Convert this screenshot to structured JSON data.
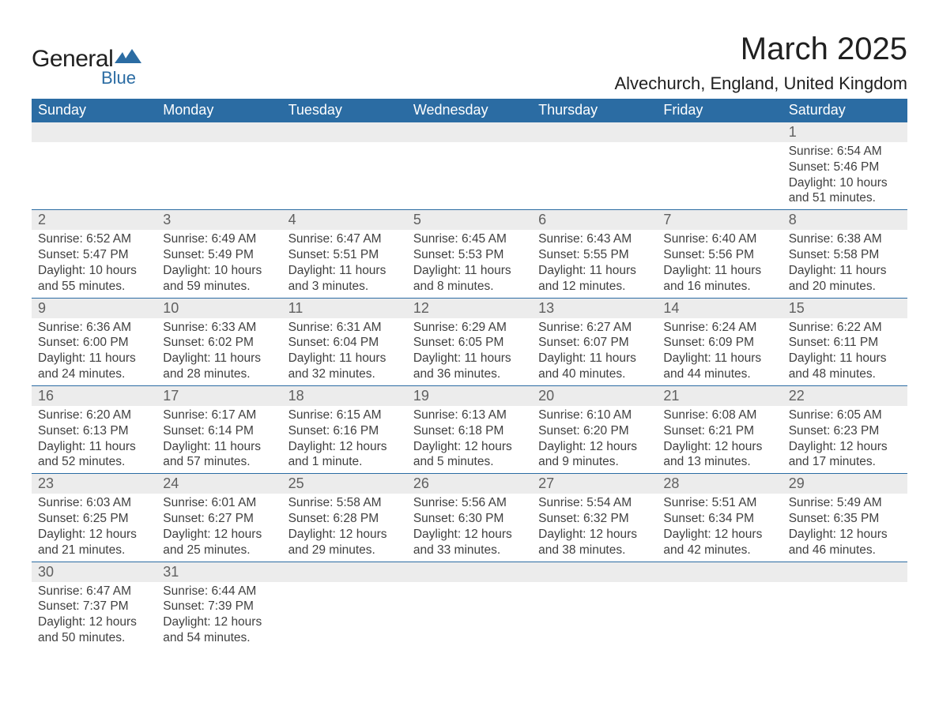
{
  "logo": {
    "general": "General",
    "blue": "Blue"
  },
  "title": "March 2025",
  "location": "Alvechurch, England, United Kingdom",
  "colors": {
    "header_bg": "#2b6ca3",
    "header_fg": "#ffffff",
    "daynum_bg": "#ececec",
    "text": "#404040",
    "border": "#2b6ca3"
  },
  "day_headers": [
    "Sunday",
    "Monday",
    "Tuesday",
    "Wednesday",
    "Thursday",
    "Friday",
    "Saturday"
  ],
  "weeks": [
    [
      null,
      null,
      null,
      null,
      null,
      null,
      {
        "n": "1",
        "sunrise": "6:54 AM",
        "sunset": "5:46 PM",
        "daylight": "10 hours and 51 minutes."
      }
    ],
    [
      {
        "n": "2",
        "sunrise": "6:52 AM",
        "sunset": "5:47 PM",
        "daylight": "10 hours and 55 minutes."
      },
      {
        "n": "3",
        "sunrise": "6:49 AM",
        "sunset": "5:49 PM",
        "daylight": "10 hours and 59 minutes."
      },
      {
        "n": "4",
        "sunrise": "6:47 AM",
        "sunset": "5:51 PM",
        "daylight": "11 hours and 3 minutes."
      },
      {
        "n": "5",
        "sunrise": "6:45 AM",
        "sunset": "5:53 PM",
        "daylight": "11 hours and 8 minutes."
      },
      {
        "n": "6",
        "sunrise": "6:43 AM",
        "sunset": "5:55 PM",
        "daylight": "11 hours and 12 minutes."
      },
      {
        "n": "7",
        "sunrise": "6:40 AM",
        "sunset": "5:56 PM",
        "daylight": "11 hours and 16 minutes."
      },
      {
        "n": "8",
        "sunrise": "6:38 AM",
        "sunset": "5:58 PM",
        "daylight": "11 hours and 20 minutes."
      }
    ],
    [
      {
        "n": "9",
        "sunrise": "6:36 AM",
        "sunset": "6:00 PM",
        "daylight": "11 hours and 24 minutes."
      },
      {
        "n": "10",
        "sunrise": "6:33 AM",
        "sunset": "6:02 PM",
        "daylight": "11 hours and 28 minutes."
      },
      {
        "n": "11",
        "sunrise": "6:31 AM",
        "sunset": "6:04 PM",
        "daylight": "11 hours and 32 minutes."
      },
      {
        "n": "12",
        "sunrise": "6:29 AM",
        "sunset": "6:05 PM",
        "daylight": "11 hours and 36 minutes."
      },
      {
        "n": "13",
        "sunrise": "6:27 AM",
        "sunset": "6:07 PM",
        "daylight": "11 hours and 40 minutes."
      },
      {
        "n": "14",
        "sunrise": "6:24 AM",
        "sunset": "6:09 PM",
        "daylight": "11 hours and 44 minutes."
      },
      {
        "n": "15",
        "sunrise": "6:22 AM",
        "sunset": "6:11 PM",
        "daylight": "11 hours and 48 minutes."
      }
    ],
    [
      {
        "n": "16",
        "sunrise": "6:20 AM",
        "sunset": "6:13 PM",
        "daylight": "11 hours and 52 minutes."
      },
      {
        "n": "17",
        "sunrise": "6:17 AM",
        "sunset": "6:14 PM",
        "daylight": "11 hours and 57 minutes."
      },
      {
        "n": "18",
        "sunrise": "6:15 AM",
        "sunset": "6:16 PM",
        "daylight": "12 hours and 1 minute."
      },
      {
        "n": "19",
        "sunrise": "6:13 AM",
        "sunset": "6:18 PM",
        "daylight": "12 hours and 5 minutes."
      },
      {
        "n": "20",
        "sunrise": "6:10 AM",
        "sunset": "6:20 PM",
        "daylight": "12 hours and 9 minutes."
      },
      {
        "n": "21",
        "sunrise": "6:08 AM",
        "sunset": "6:21 PM",
        "daylight": "12 hours and 13 minutes."
      },
      {
        "n": "22",
        "sunrise": "6:05 AM",
        "sunset": "6:23 PM",
        "daylight": "12 hours and 17 minutes."
      }
    ],
    [
      {
        "n": "23",
        "sunrise": "6:03 AM",
        "sunset": "6:25 PM",
        "daylight": "12 hours and 21 minutes."
      },
      {
        "n": "24",
        "sunrise": "6:01 AM",
        "sunset": "6:27 PM",
        "daylight": "12 hours and 25 minutes."
      },
      {
        "n": "25",
        "sunrise": "5:58 AM",
        "sunset": "6:28 PM",
        "daylight": "12 hours and 29 minutes."
      },
      {
        "n": "26",
        "sunrise": "5:56 AM",
        "sunset": "6:30 PM",
        "daylight": "12 hours and 33 minutes."
      },
      {
        "n": "27",
        "sunrise": "5:54 AM",
        "sunset": "6:32 PM",
        "daylight": "12 hours and 38 minutes."
      },
      {
        "n": "28",
        "sunrise": "5:51 AM",
        "sunset": "6:34 PM",
        "daylight": "12 hours and 42 minutes."
      },
      {
        "n": "29",
        "sunrise": "5:49 AM",
        "sunset": "6:35 PM",
        "daylight": "12 hours and 46 minutes."
      }
    ],
    [
      {
        "n": "30",
        "sunrise": "6:47 AM",
        "sunset": "7:37 PM",
        "daylight": "12 hours and 50 minutes."
      },
      {
        "n": "31",
        "sunrise": "6:44 AM",
        "sunset": "7:39 PM",
        "daylight": "12 hours and 54 minutes."
      },
      null,
      null,
      null,
      null,
      null
    ]
  ],
  "labels": {
    "sunrise": "Sunrise: ",
    "sunset": "Sunset: ",
    "daylight": "Daylight: "
  }
}
